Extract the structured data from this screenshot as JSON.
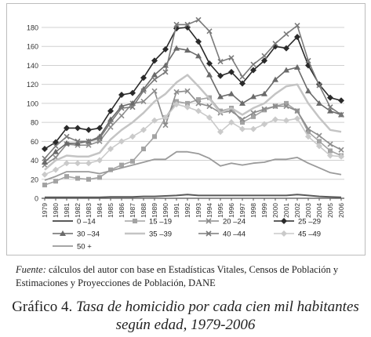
{
  "chart_data": {
    "type": "line",
    "title": "",
    "xlabel": "",
    "ylabel": "",
    "ylim": [
      0,
      190
    ],
    "yticks": [
      0,
      20,
      40,
      60,
      80,
      100,
      120,
      140,
      160,
      180
    ],
    "grid": "horizontal",
    "legend_position": "bottom",
    "categories": [
      "1979",
      "1980",
      "1981",
      "1982",
      "1983",
      "1984",
      "1985",
      "1986",
      "1987",
      "1988",
      "1989",
      "1990",
      "1991",
      "1992",
      "1993",
      "1994",
      "1995",
      "1996",
      "1997",
      "1998",
      "1999",
      "2000",
      "2001",
      "2002",
      "2003",
      "2004",
      "2005",
      "2006"
    ],
    "series": [
      {
        "name": "0 –14",
        "color": "#5a5a5a",
        "marker": "none",
        "width": 2,
        "values": [
          1,
          1,
          1,
          1,
          1,
          1,
          1.5,
          1.5,
          1.5,
          2,
          2,
          2.5,
          3,
          4,
          3,
          3,
          3,
          3,
          3,
          3,
          3,
          3,
          3,
          4,
          3,
          2,
          1.5,
          1
        ]
      },
      {
        "name": "15 –19",
        "color": "#a3a3a3",
        "marker": "square",
        "values": [
          14,
          18,
          23,
          21,
          20,
          22,
          30,
          35,
          39,
          52,
          65,
          85,
          102,
          100,
          104,
          106,
          92,
          95,
          80,
          86,
          93,
          97,
          100,
          92,
          70,
          60,
          50,
          45
        ]
      },
      {
        "name": "20 –24",
        "color": "#8c8c8c",
        "marker": "x",
        "values": [
          35,
          43,
          57,
          56,
          56,
          60,
          75,
          87,
          100,
          102,
          113,
          77,
          112,
          113,
          100,
          97,
          90,
          92,
          83,
          90,
          94,
          97,
          97,
          92,
          73,
          66,
          57,
          51
        ]
      },
      {
        "name": "25 –29",
        "color": "#2a2a2a",
        "marker": "diamond",
        "values": [
          52,
          59,
          74,
          74,
          72,
          74,
          92,
          109,
          111,
          127,
          145,
          157,
          179,
          180,
          165,
          142,
          129,
          133,
          121,
          135,
          145,
          160,
          158,
          170,
          140,
          120,
          106,
          103
        ]
      },
      {
        "name": "30 –34",
        "color": "#6a6a6a",
        "marker": "triangle",
        "values": [
          38,
          49,
          58,
          58,
          60,
          65,
          83,
          97,
          100,
          115,
          130,
          140,
          158,
          156,
          150,
          130,
          107,
          110,
          100,
          107,
          110,
          125,
          135,
          138,
          113,
          100,
          92,
          88
        ]
      },
      {
        "name": "35 –39",
        "color": "#c4c4c4",
        "marker": "none",
        "width": 2.5,
        "values": [
          30,
          40,
          45,
          44,
          44,
          48,
          62,
          72,
          80,
          90,
          102,
          110,
          122,
          130,
          118,
          105,
          90,
          95,
          88,
          95,
          100,
          110,
          118,
          120,
          100,
          85,
          72,
          70
        ]
      },
      {
        "name": "40 –44",
        "color": "#7a7a7a",
        "marker": "x",
        "values": [
          42,
          55,
          65,
          60,
          60,
          63,
          80,
          95,
          96,
          113,
          125,
          133,
          183,
          183,
          188,
          176,
          144,
          148,
          128,
          141,
          150,
          163,
          173,
          182,
          145,
          119,
          96,
          88
        ]
      },
      {
        "name": "45 –49",
        "color": "#cacaca",
        "marker": "diamond",
        "values": [
          25,
          30,
          37,
          37,
          37,
          40,
          52,
          60,
          65,
          72,
          82,
          85,
          99,
          96,
          92,
          85,
          70,
          80,
          73,
          73,
          78,
          83,
          82,
          84,
          65,
          55,
          45,
          44
        ]
      },
      {
        "name": "50 +",
        "color": "#9a9a9a",
        "marker": "none",
        "width": 1.8,
        "values": [
          19,
          23,
          28,
          28,
          28,
          26,
          29,
          32,
          35,
          38,
          41,
          41,
          49,
          49,
          47,
          42,
          34,
          37,
          35,
          37,
          38,
          41,
          41,
          43,
          37,
          32,
          27,
          25
        ]
      }
    ]
  },
  "source": {
    "label": "Fuente:",
    "text": " cálculos del autor con base en Estadísticas Vitales, Censos de Población y Estimaciones y Proyecciones de Población, DANE"
  },
  "caption": {
    "prefix": "Gráfico 4. ",
    "title_line1": "Tasa de homicidio por cada cien mil habitantes",
    "title_line2": "según edad, 1979-2006"
  }
}
